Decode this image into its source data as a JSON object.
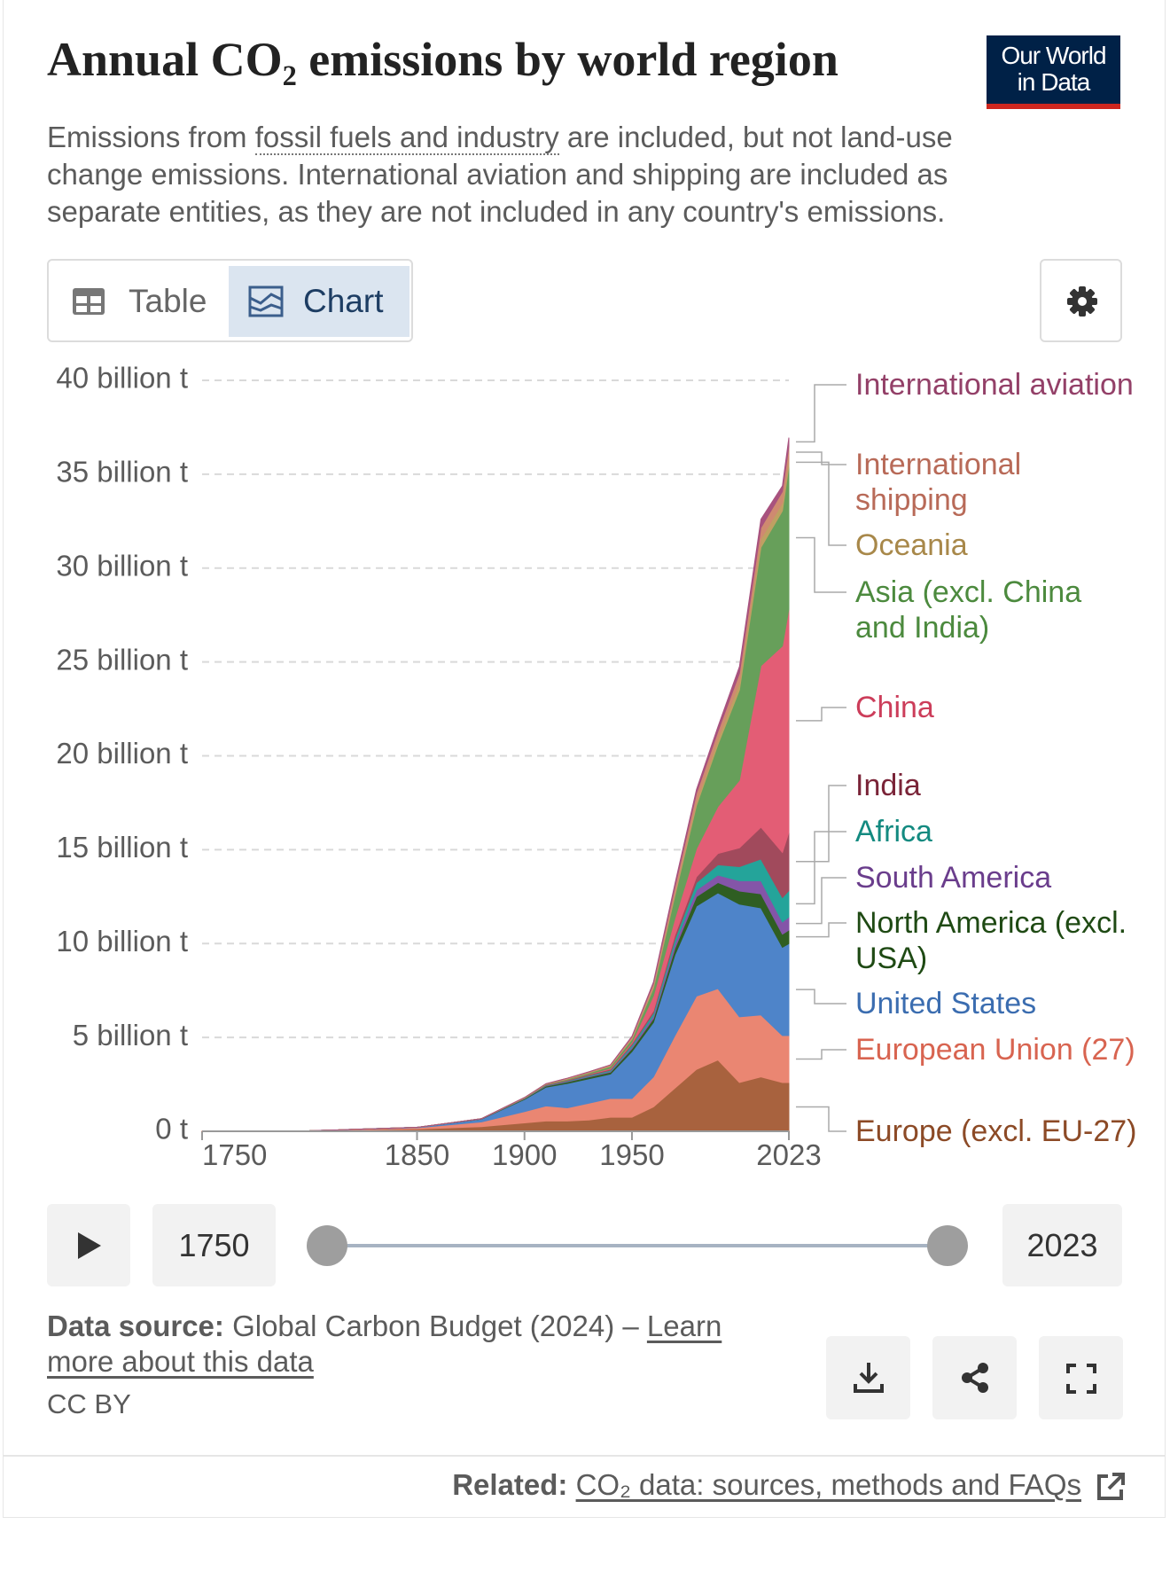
{
  "header": {
    "title": "Annual CO₂ emissions by world region",
    "logo": [
      "Our World",
      "in Data"
    ],
    "subtitle": [
      "Emissions from ",
      "fossil fuels and industry",
      " are included, but not land-use change emissions. International aviation and shipping are included as separate entities, as they are not included in any country's emissions."
    ]
  },
  "tabs": [
    "Table",
    "Chart"
  ],
  "chart_data": {
    "type": "area",
    "stacked": true,
    "x": [
      1750,
      1800,
      1850,
      1880,
      1900,
      1910,
      1920,
      1930,
      1940,
      1950,
      1960,
      1970,
      1980,
      1990,
      2000,
      2010,
      2020,
      2023
    ],
    "xlim": [
      1750,
      2023
    ],
    "xticks": [
      1750,
      1850,
      1900,
      1950,
      2023
    ],
    "ylim": [
      0,
      40
    ],
    "yticks": [
      {
        "value": 0,
        "label": "0 t"
      },
      {
        "value": 5,
        "label": "5 billion t"
      },
      {
        "value": 10,
        "label": "10 billion t"
      },
      {
        "value": 15,
        "label": "15 billion t"
      },
      {
        "value": 20,
        "label": "20 billion t"
      },
      {
        "value": 25,
        "label": "25 billion t"
      },
      {
        "value": 30,
        "label": "30 billion t"
      },
      {
        "value": 35,
        "label": "35 billion t"
      },
      {
        "value": 40,
        "label": "40 billion t"
      }
    ],
    "grid": true,
    "series": [
      {
        "name": "Europe (excl. EU-27)",
        "color": "#a8623e",
        "label_color": "#8c4a26",
        "values": [
          0.005,
          0.02,
          0.12,
          0.25,
          0.45,
          0.55,
          0.55,
          0.6,
          0.75,
          0.75,
          1.3,
          2.3,
          3.3,
          3.8,
          2.6,
          2.9,
          2.6,
          2.6
        ]
      },
      {
        "name": "European Union (27)",
        "color": "#ea8672",
        "label_color": "#d86450",
        "values": [
          0.004,
          0.01,
          0.07,
          0.25,
          0.6,
          0.8,
          0.7,
          0.9,
          1.0,
          1.0,
          1.6,
          2.8,
          3.9,
          3.8,
          3.5,
          3.3,
          2.5,
          2.5
        ]
      },
      {
        "name": "United States",
        "color": "#4e84c9",
        "label_color": "#3b6db0",
        "values": [
          0,
          0.0003,
          0.02,
          0.15,
          0.65,
          1.0,
          1.3,
          1.3,
          1.3,
          2.5,
          2.9,
          4.3,
          4.8,
          5.1,
          6.0,
          5.7,
          4.7,
          4.9
        ]
      },
      {
        "name": "North America (excl. USA)",
        "color": "#2f5e22",
        "label_color": "#1f4a14",
        "values": [
          0,
          0,
          0,
          0.01,
          0.03,
          0.06,
          0.08,
          0.1,
          0.1,
          0.15,
          0.2,
          0.35,
          0.5,
          0.55,
          0.7,
          0.75,
          0.7,
          0.72
        ]
      },
      {
        "name": "South America",
        "color": "#8455a8",
        "label_color": "#6a3d8c",
        "values": [
          0,
          0,
          0,
          0.005,
          0.01,
          0.02,
          0.03,
          0.04,
          0.05,
          0.1,
          0.15,
          0.25,
          0.35,
          0.4,
          0.55,
          0.7,
          0.65,
          0.7
        ]
      },
      {
        "name": "Africa",
        "color": "#24a49a",
        "label_color": "#138a80",
        "values": [
          0,
          0,
          0,
          0.002,
          0.01,
          0.02,
          0.03,
          0.04,
          0.05,
          0.1,
          0.15,
          0.25,
          0.4,
          0.55,
          0.75,
          1.15,
          1.3,
          1.4
        ]
      },
      {
        "name": "India",
        "color": "#a14a5c",
        "label_color": "#7a2438",
        "values": [
          0,
          0,
          0,
          0.005,
          0.02,
          0.03,
          0.04,
          0.05,
          0.06,
          0.07,
          0.12,
          0.2,
          0.3,
          0.6,
          1.0,
          1.7,
          2.4,
          3.1
        ]
      },
      {
        "name": "China",
        "color": "#e35d75",
        "label_color": "#cc3d5a",
        "values": [
          0,
          0,
          0,
          0,
          0.001,
          0.003,
          0.01,
          0.02,
          0.05,
          0.08,
          0.8,
          0.9,
          1.5,
          2.5,
          3.6,
          8.6,
          11.0,
          11.9
        ]
      },
      {
        "name": "Asia (excl. China and India)",
        "color": "#679f5a",
        "label_color": "#4c8a3e",
        "values": [
          0,
          0,
          0,
          0.002,
          0.01,
          0.02,
          0.04,
          0.06,
          0.1,
          0.15,
          0.4,
          1.2,
          2.3,
          3.3,
          4.8,
          6.3,
          7.2,
          7.6
        ]
      },
      {
        "name": "Oceania",
        "color": "#bfa062",
        "label_color": "#a8884a",
        "values": [
          0,
          0,
          0,
          0.001,
          0.01,
          0.01,
          0.02,
          0.02,
          0.03,
          0.04,
          0.06,
          0.12,
          0.2,
          0.3,
          0.4,
          0.45,
          0.43,
          0.43
        ]
      },
      {
        "name": "International shipping",
        "color": "#cf8a70",
        "label_color": "#b86a58",
        "values": [
          0,
          0,
          0,
          0,
          0.01,
          0.02,
          0.03,
          0.04,
          0.05,
          0.1,
          0.2,
          0.35,
          0.45,
          0.4,
          0.5,
          0.6,
          0.6,
          0.65
        ]
      },
      {
        "name": "International aviation",
        "color": "#a8527e",
        "label_color": "#934068",
        "values": [
          0,
          0,
          0,
          0,
          0,
          0,
          0,
          0,
          0,
          0.02,
          0.07,
          0.17,
          0.2,
          0.25,
          0.35,
          0.45,
          0.3,
          0.45
        ]
      }
    ]
  },
  "footer": {
    "source_label": "Data source:",
    "source": " Global Carbon Budget (2024) – ",
    "learn_more": "Learn more about this data",
    "license": "CC BY",
    "related_label": "Related:",
    "related": "CO₂ data: sources, methods and FAQs"
  }
}
